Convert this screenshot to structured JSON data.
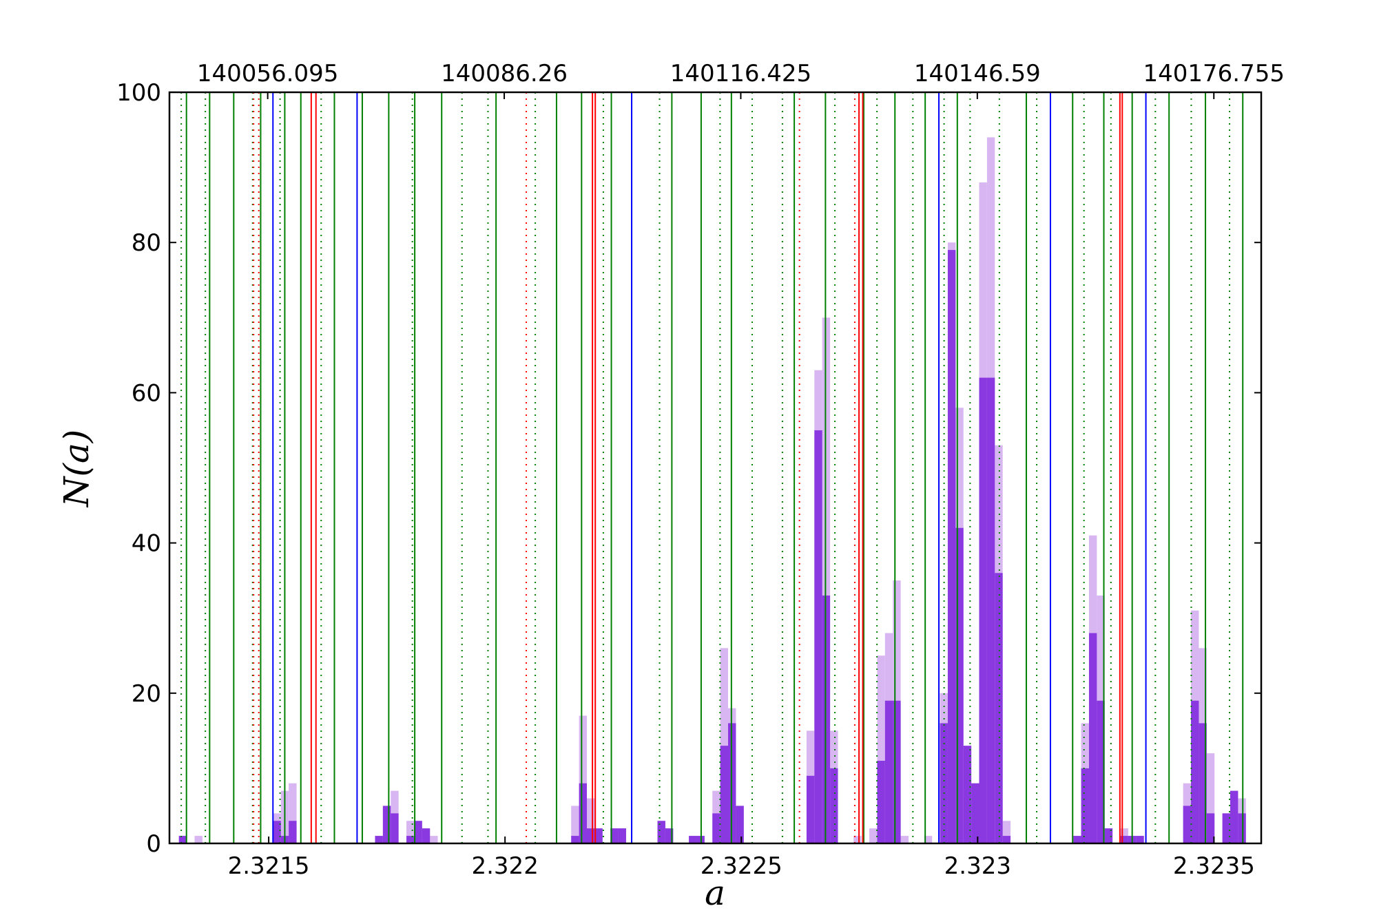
{
  "chart_data": {
    "type": "histogram",
    "xlabel": "a",
    "ylabel": "N(a)",
    "xlim": [
      2.32129,
      2.3236
    ],
    "xticks": [
      2.3215,
      2.322,
      2.3225,
      2.323,
      2.3235
    ],
    "x2lim": [
      140043.565,
      140182.795
    ],
    "x2ticks": [
      140056.095,
      140086.26,
      140116.425,
      140146.59,
      140176.755
    ],
    "ylim": [
      0,
      100
    ],
    "yticks": [
      0,
      20,
      40,
      60,
      80,
      100
    ],
    "bins": [
      2.32131,
      2.3213266,
      2.3213432,
      2.3213598,
      2.3213764,
      2.321393,
      2.3214096,
      2.3214262,
      2.3214428,
      2.3214594,
      2.321476,
      2.3214926,
      2.3215092,
      2.3215258,
      2.3215424,
      2.321559,
      2.3215756,
      2.3215922,
      2.3216088,
      2.3216254,
      2.321642,
      2.3216586,
      2.3216752,
      2.3216918,
      2.3217084,
      2.321725,
      2.3217416,
      2.3217582,
      2.3217748,
      2.3217914,
      2.321808,
      2.3218246,
      2.3218412,
      2.3218578,
      2.3218744,
      2.321891,
      2.3219076,
      2.3219242,
      2.3219408,
      2.3219574,
      2.321974,
      2.3219906,
      2.3220072,
      2.3220238,
      2.3220404,
      2.322057,
      2.3220736,
      2.3220902,
      2.3221068,
      2.3221234,
      2.32214,
      2.3221566,
      2.3221732,
      2.3221898,
      2.3222064,
      2.322223,
      2.3222396,
      2.3222562,
      2.3222728,
      2.3222894,
      2.322306,
      2.3223226,
      2.3223392,
      2.3223558,
      2.3223724,
      2.322389,
      2.3224056,
      2.3224222,
      2.3224388,
      2.3224554,
      2.322472,
      2.3224886,
      2.3225052,
      2.3225218,
      2.3225384,
      2.322555,
      2.3225716,
      2.3225882,
      2.3226048,
      2.3226214,
      2.322638,
      2.3226546,
      2.3226712,
      2.3226878,
      2.3227044,
      2.322721,
      2.3227376,
      2.3227542,
      2.3227708,
      2.3227874,
      2.322804,
      2.3228206,
      2.3228372,
      2.3228538,
      2.3228704,
      2.322887,
      2.3229036,
      2.3229202,
      2.3229368,
      2.3229534,
      2.32297,
      2.3229866,
      2.3230032,
      2.3230198,
      2.3230364,
      2.323053,
      2.3230696,
      2.3230862,
      2.3231028,
      2.3231194,
      2.323136,
      2.3231526,
      2.3231692,
      2.3231858,
      2.3232024,
      2.323219,
      2.3232356,
      2.3232522,
      2.3232688,
      2.3232854,
      2.323302,
      2.3233186,
      2.3233352,
      2.3233518,
      2.3233684,
      2.323385,
      2.3234016,
      2.3234182,
      2.3234348,
      2.3234514,
      2.323468,
      2.3234846,
      2.3235012,
      2.3235178,
      2.3235344,
      2.323551,
      2.3235676
    ],
    "series": [
      {
        "color": "#d8b6f2",
        "values": [
          1,
          0,
          1,
          0,
          0,
          0,
          0,
          0,
          0,
          0,
          0,
          0,
          4,
          7,
          8,
          0,
          0,
          0,
          0,
          0,
          0,
          0,
          0,
          0,
          0,
          1,
          5,
          7,
          0,
          3,
          3,
          2,
          1,
          0,
          0,
          0,
          0,
          0,
          0,
          0,
          0,
          0,
          0,
          0,
          0,
          0,
          0,
          0,
          0,
          0,
          5,
          17,
          6,
          2,
          0,
          2,
          2,
          0,
          0,
          0,
          0,
          3,
          2,
          0,
          0,
          1,
          1,
          0,
          7,
          26,
          18,
          5,
          0,
          0,
          0,
          0,
          0,
          0,
          0,
          0,
          15,
          63,
          70,
          15,
          0,
          0,
          1,
          0,
          2,
          25,
          28,
          35,
          1,
          0,
          0,
          1,
          0,
          20,
          80,
          58,
          13,
          8,
          88,
          94,
          53,
          3,
          0,
          0,
          0,
          0,
          0,
          0,
          0,
          0,
          1,
          16,
          41,
          33,
          2,
          0,
          2,
          1,
          1,
          0,
          0,
          0,
          0,
          0,
          8,
          31,
          26,
          12,
          0,
          4,
          7,
          6
        ]
      },
      {
        "color": "#8a38e0",
        "values": [
          1,
          0,
          0,
          0,
          0,
          0,
          0,
          0,
          0,
          0,
          0,
          0,
          3,
          1,
          3,
          0,
          0,
          0,
          0,
          0,
          0,
          0,
          0,
          0,
          0,
          1,
          5,
          4,
          0,
          1,
          3,
          2,
          0,
          0,
          0,
          0,
          0,
          0,
          0,
          0,
          0,
          0,
          0,
          0,
          0,
          0,
          0,
          0,
          0,
          0,
          1,
          8,
          2,
          2,
          0,
          2,
          2,
          0,
          0,
          0,
          0,
          3,
          2,
          0,
          0,
          1,
          1,
          0,
          4,
          13,
          16,
          5,
          0,
          0,
          0,
          0,
          0,
          0,
          0,
          0,
          9,
          55,
          33,
          10,
          0,
          0,
          0,
          0,
          0,
          11,
          19,
          19,
          0,
          0,
          0,
          0,
          0,
          16,
          79,
          42,
          13,
          8,
          62,
          62,
          36,
          1,
          0,
          0,
          0,
          0,
          0,
          0,
          0,
          0,
          1,
          10,
          28,
          19,
          2,
          0,
          1,
          1,
          1,
          0,
          0,
          0,
          0,
          0,
          5,
          19,
          16,
          4,
          0,
          4,
          7,
          4
        ]
      }
    ],
    "vlines": [
      {
        "color": "#008000",
        "style": "solid",
        "x": [
          2.321326,
          2.321375,
          2.321426,
          2.321483,
          2.321534,
          2.321568,
          2.321639,
          2.321698,
          2.321754,
          2.321809,
          2.321866,
          2.321981,
          2.322109,
          2.322162,
          2.322225,
          2.322353,
          2.322415,
          2.322479,
          2.322612,
          2.322678,
          2.322759,
          2.322825,
          2.322889,
          2.322957,
          2.323103,
          2.323201,
          2.323267,
          2.323327,
          2.323405,
          2.323482,
          2.323561
        ]
      },
      {
        "color": "#008000",
        "style": "dotted",
        "x": [
          2.321315,
          2.321366,
          2.321466,
          2.321524,
          2.321611,
          2.321804,
          2.321909,
          2.321964,
          2.322064,
          2.322208,
          2.322327,
          2.322455,
          2.322523,
          2.322587,
          2.322698,
          2.322787,
          2.322863,
          2.322929,
          2.322984,
          2.323046,
          2.323125,
          2.323225,
          2.323282,
          2.323376,
          2.323452,
          2.323533
        ]
      },
      {
        "color": "#ff0000",
        "style": "solid",
        "x": [
          2.32159,
          2.3216,
          2.322185,
          2.322191,
          2.322749,
          2.322757,
          2.323301,
          2.323306
        ]
      },
      {
        "color": "#ff0000",
        "style": "dotted",
        "x": [
          2.321468,
          2.321479,
          2.322045,
          2.322623,
          2.32274
        ]
      },
      {
        "color": "#0000ff",
        "style": "solid",
        "x": [
          2.321509,
          2.321687,
          2.322268,
          2.322918,
          2.323154,
          2.323356
        ]
      }
    ]
  }
}
